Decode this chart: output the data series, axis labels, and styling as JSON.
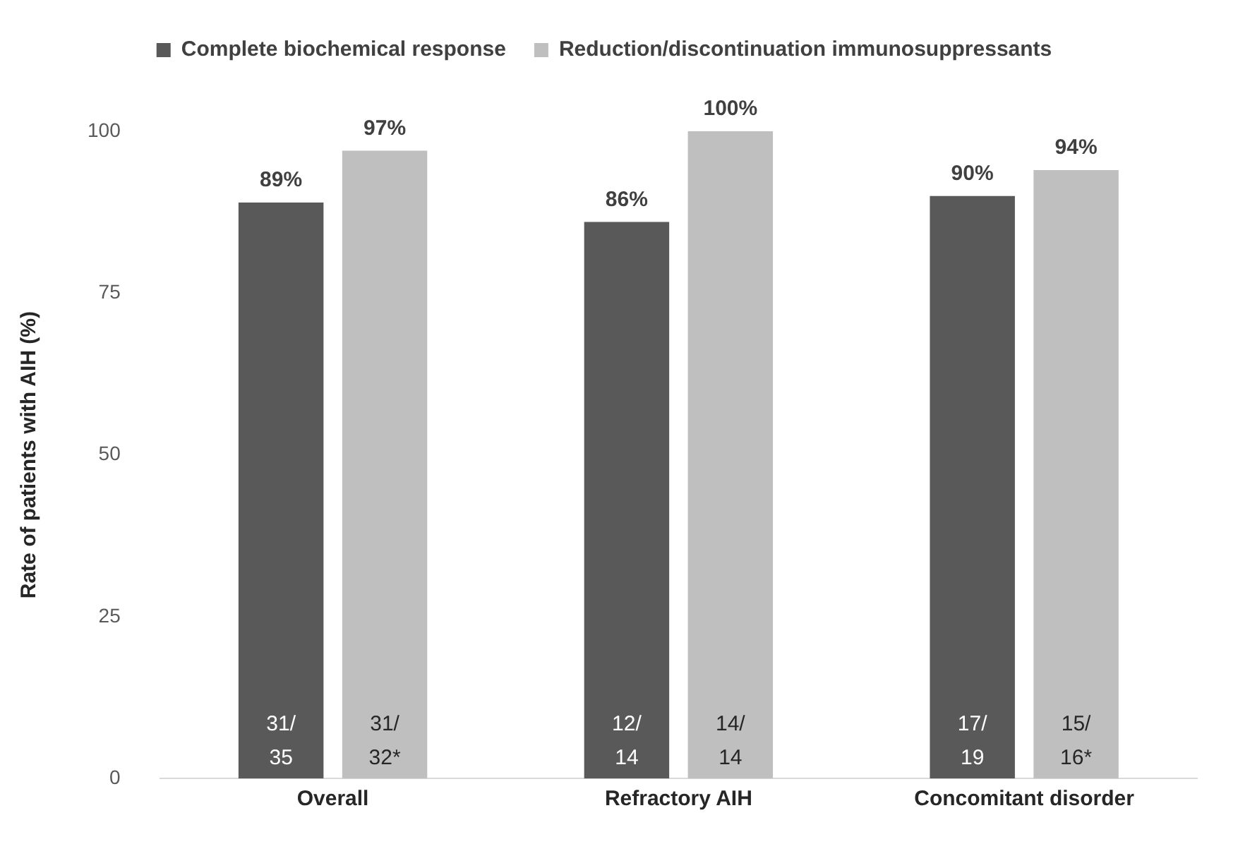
{
  "chart_data": {
    "type": "bar",
    "ylabel": "Rate of patients with AIH (%)",
    "categories": [
      "Overall",
      "Refractory AIH",
      "Concomitant disorder"
    ],
    "series": [
      {
        "name": "Complete biochemical response",
        "color": "#595959",
        "values": [
          89,
          86,
          90
        ],
        "value_labels": [
          "89%",
          "86%",
          "90%"
        ]
      },
      {
        "name": "Reduction/discontinuation immunosuppressants",
        "color": "#bfbfbf",
        "values": [
          97,
          100,
          94
        ],
        "value_labels": [
          "97%",
          "100%",
          "94%"
        ]
      }
    ],
    "ylim": [
      0,
      100
    ],
    "yticks": [
      0,
      25,
      50,
      75,
      100
    ],
    "grid": false,
    "legend": "top",
    "annotations": [
      "31/\n35",
      "31/\n32*",
      "12/\n14",
      "14/\n14",
      "17/\n19",
      "15/\n16*"
    ]
  }
}
